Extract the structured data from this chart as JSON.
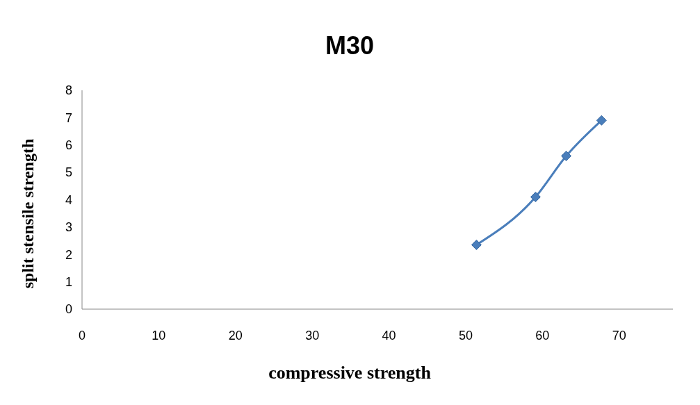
{
  "chart_data": {
    "type": "line",
    "title": "M30",
    "xlabel": "compressive strength",
    "ylabel": "split stensile strength",
    "series": [
      {
        "color": "#4a7ebb",
        "x": [
          51.4,
          59.1,
          63.1,
          67.7
        ],
        "values": [
          2.35,
          4.1,
          5.6,
          6.9
        ]
      }
    ],
    "xlim": [
      0,
      77
    ],
    "xticks": [
      0,
      10,
      20,
      30,
      40,
      50,
      60,
      70
    ],
    "ylim": [
      0,
      8
    ],
    "yticks": [
      0,
      1,
      2,
      3,
      4,
      5,
      6,
      7,
      8
    ],
    "grid": false,
    "marker": "diamond",
    "line_style": "solid"
  }
}
